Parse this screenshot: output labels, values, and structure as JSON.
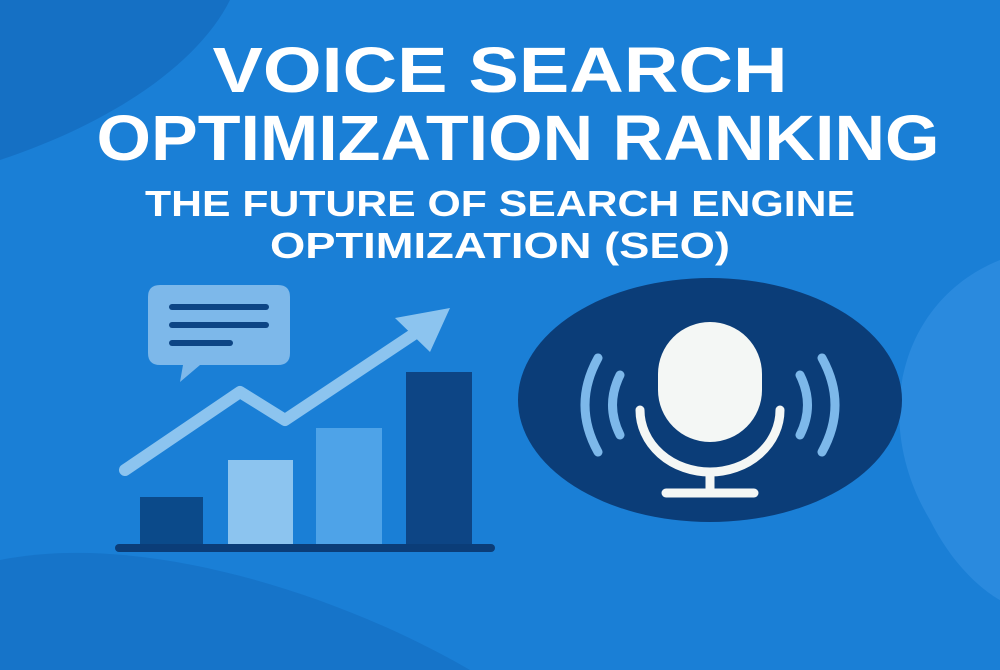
{
  "title": [
    "VOICE SEARCH",
    "OPTIMIZATION RANKING"
  ],
  "subtitle": [
    "THE FUTURE OF SEARCH ENGINE",
    "OPTIMIZATION (SEO)"
  ]
}
